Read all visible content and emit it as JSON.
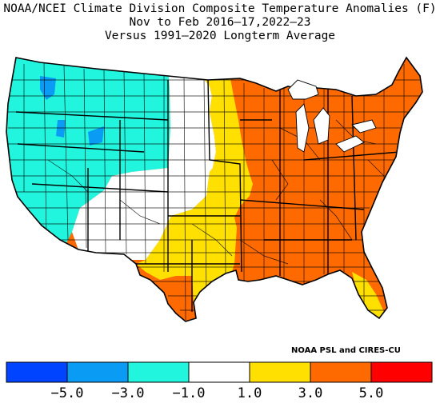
{
  "title": {
    "line1": "NOAA/NCEI Climate Division Composite Temperature Anomalies (F)",
    "line2": "Nov to Feb  2016–17,2022–23",
    "line3": "Versus 1991–2020 Longterm Average"
  },
  "credit": "NOAA PSL and CIRES-CU",
  "legend": {
    "bins": [
      {
        "range": "< -5.0",
        "color": "#0044ff"
      },
      {
        "range": "-5.0 to -3.0",
        "color": "#0a9bf5"
      },
      {
        "range": "-3.0 to -1.0",
        "color": "#22f5de"
      },
      {
        "range": "-1.0 to 1.0",
        "color": "#ffffff"
      },
      {
        "range": "1.0 to 3.0",
        "color": "#ffe000"
      },
      {
        "range": "3.0 to 5.0",
        "color": "#ff6a00"
      },
      {
        "range": "> 5.0",
        "color": "#ff0000"
      }
    ],
    "ticks": [
      "−5.0",
      "−3.0",
      "−1.0",
      "1.0",
      "3.0",
      "5.0"
    ]
  },
  "chart_data": {
    "type": "heatmap",
    "title": "NOAA/NCEI Climate Division Composite Temperature Anomalies (F)",
    "subtitle": "Nov to Feb  2016–17,2022–23 Versus 1991–2020 Longterm Average",
    "units": "F",
    "color_scale_breaks": [
      -5.0,
      -3.0,
      -1.0,
      1.0,
      3.0,
      5.0
    ],
    "regions": [
      {
        "region": "Pacific Northwest / Northern Rockies / California / Great Basin",
        "anomaly_bin": "-3.0 to -1.0"
      },
      {
        "region": "NW Washington / N Idaho / SW Montana / N Wyoming (local pockets)",
        "anomaly_bin": "-5.0 to -3.0"
      },
      {
        "region": "Southwest / Four Corners / Central Plains",
        "anomaly_bin": "-1.0 to 1.0"
      },
      {
        "region": "Eastern Dakotas / Minnesota / Iowa / Eastern Kansas / Oklahoma / West Texas / Florida Peninsula",
        "anomaly_bin": "1.0 to 3.0"
      },
      {
        "region": "Midwest / Great Lakes / Northeast / Southeast / South Texas",
        "anomaly_bin": "3.0 to 5.0"
      }
    ]
  }
}
